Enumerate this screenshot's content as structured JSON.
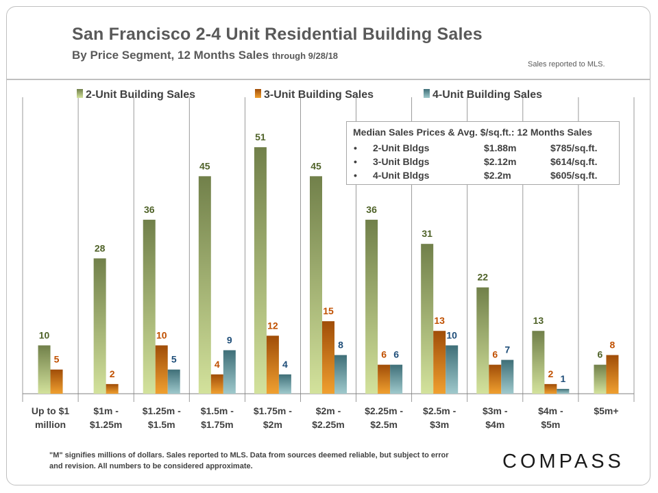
{
  "title": "San Francisco 2-4 Unit Residential Building Sales",
  "subtitle": "By Price Segment, 12 Months Sales",
  "subtitle_small": "through 9/28/18",
  "mls_note": "Sales reported to MLS.",
  "footnote": "\"M\" signifies millions of dollars. Sales reported to MLS. Data from sources deemed reliable, but subject to error and revision. All numbers to be considered approximate.",
  "logo": "COMPASS",
  "info_box": {
    "title": "Median Sales Prices & Avg. $/sq.ft.: 12 Months Sales",
    "rows": [
      {
        "bullet": "•",
        "name": "2-Unit Bldgs",
        "price": "$1.88m",
        "psf": "$785/sq.ft."
      },
      {
        "bullet": "•",
        "name": "3-Unit Bldgs",
        "price": "$2.12m",
        "psf": "$614/sq.ft."
      },
      {
        "bullet": "•",
        "name": "4-Unit Bldgs",
        "price": "$2.2m",
        "psf": "$605/sq.ft."
      }
    ]
  },
  "colors": {
    "series_2_top": "#71804a",
    "series_2_bottom": "#d3e29c",
    "series_3_top": "#a04d08",
    "series_3_bottom": "#f0a030",
    "series_4_top": "#3f6f78",
    "series_4_bottom": "#9fc9cc",
    "label_2": "#4f6228",
    "label_3": "#c05000",
    "label_4": "#1f4e79",
    "divider": "#808080"
  },
  "chart_data": {
    "type": "bar",
    "categories": [
      "Up to $1\nmillion",
      "$1m -\n$1.25m",
      "$1.25m -\n$1.5m",
      "$1.5m -\n$1.75m",
      "$1.75m -\n$2m",
      "$2m -\n$2.25m",
      "$2.25m -\n$2.5m",
      "$2.5m -\n$3m",
      "$3m -\n$4m",
      "$4m -\n$5m",
      "$5m+"
    ],
    "series": [
      {
        "name": "2-Unit Building Sales",
        "values": [
          10,
          28,
          36,
          45,
          51,
          45,
          36,
          31,
          22,
          13,
          6
        ]
      },
      {
        "name": "3-Unit Building Sales",
        "values": [
          5,
          2,
          10,
          4,
          12,
          15,
          6,
          13,
          6,
          2,
          8
        ]
      },
      {
        "name": "4-Unit Building Sales",
        "values": [
          null,
          null,
          5,
          9,
          4,
          8,
          6,
          10,
          7,
          1,
          null
        ]
      }
    ],
    "ylim": [
      0,
      60
    ],
    "legend_position": "top",
    "grid": false
  }
}
